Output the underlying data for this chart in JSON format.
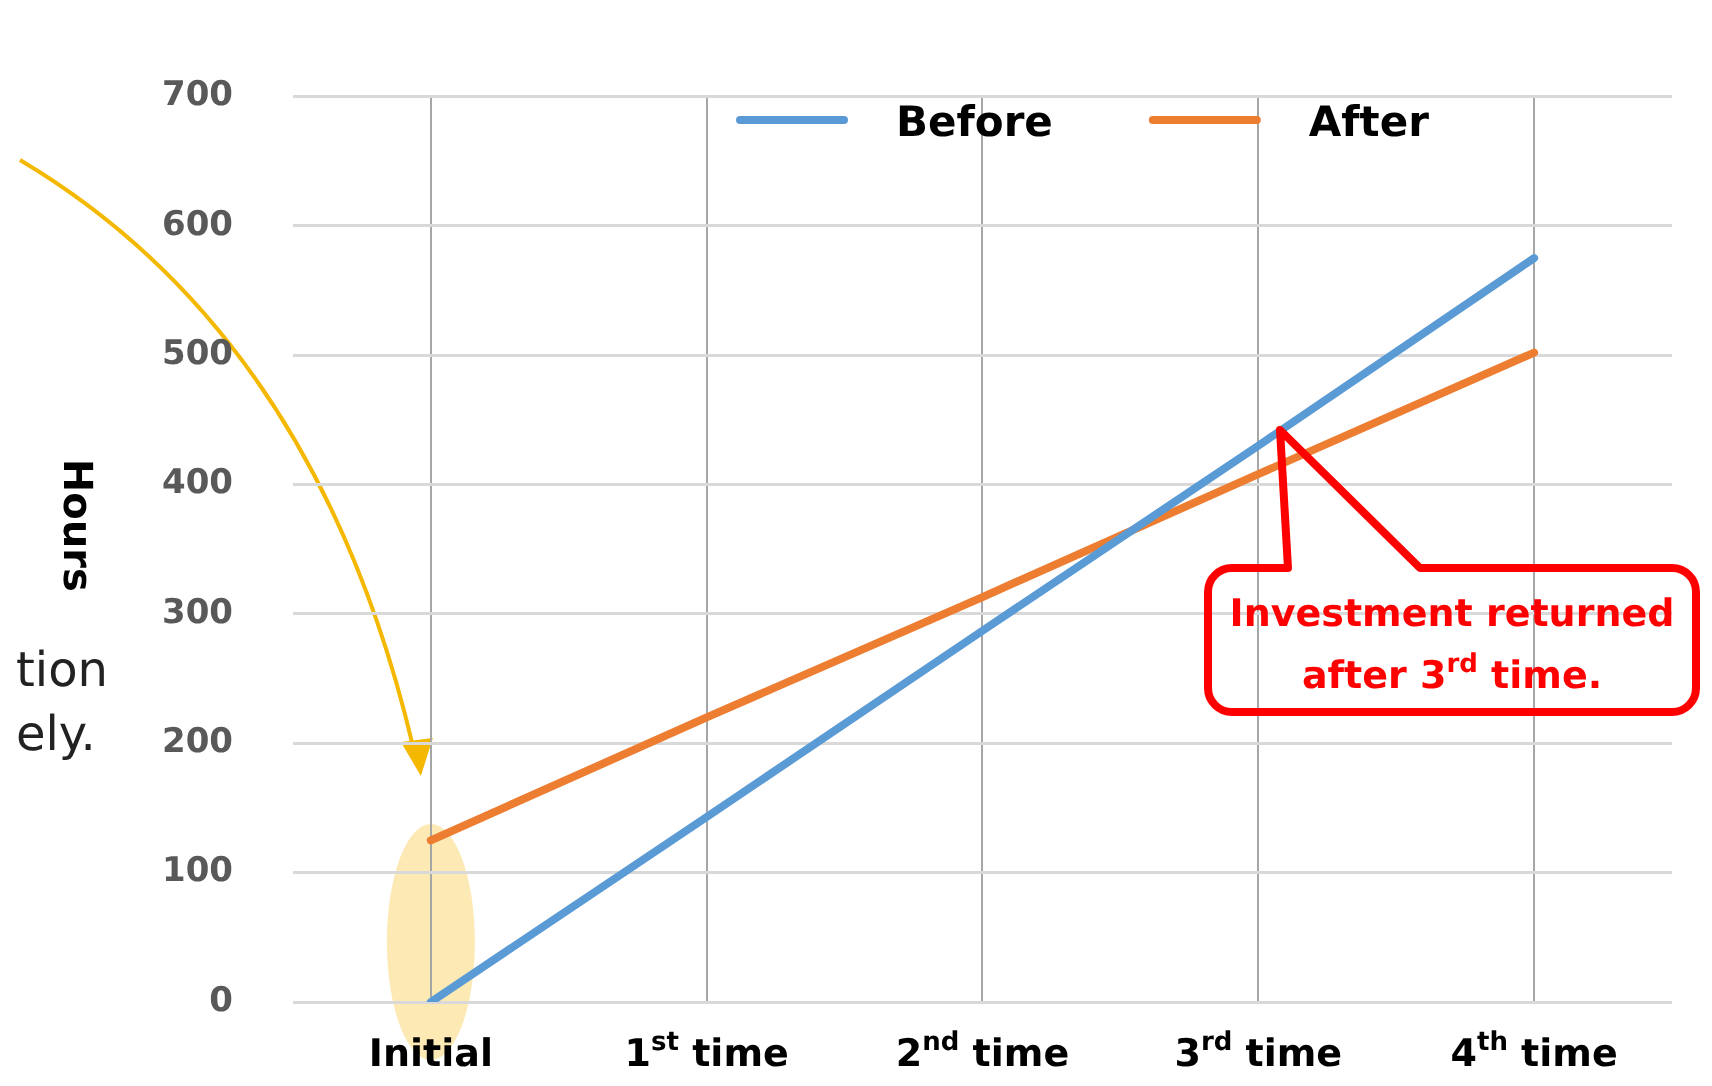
{
  "chart_data": {
    "type": "line",
    "ylabel": "Hours",
    "categories": [
      "Initial",
      "1$^{st}$ time",
      "2$^{nd}$ time",
      "3$^{rd}$ time",
      "4$^{th}$ time"
    ],
    "series": [
      {
        "name": "Before",
        "color": "#5b9bd5",
        "values": [
          0,
          143,
          287,
          430,
          575
        ]
      },
      {
        "name": "After",
        "color": "#ed7d31",
        "values": [
          125,
          220,
          313,
          408,
          502
        ]
      }
    ],
    "ylim": [
      0,
      700
    ],
    "yticks": [
      0,
      100,
      200,
      300,
      400,
      500,
      600,
      700
    ],
    "grid": true,
    "legend": "top right",
    "annotations": [
      "Investment returned after 3$^{rd}$ time.",
      "tion",
      "ely."
    ]
  }
}
